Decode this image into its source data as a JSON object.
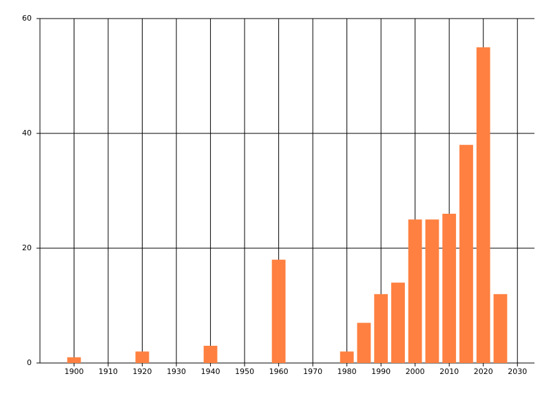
{
  "chart_data": {
    "type": "bar",
    "x": [
      1900,
      1920,
      1940,
      1960,
      1980,
      1985,
      1990,
      1995,
      2000,
      2005,
      2010,
      2015,
      2020,
      2025
    ],
    "values": [
      1,
      2,
      3,
      18,
      2,
      7,
      12,
      14,
      25,
      25,
      26,
      38,
      55,
      12
    ],
    "color": "#ff8040",
    "xlim": [
      1890,
      2035
    ],
    "xticks": [
      1900,
      1910,
      1920,
      1930,
      1940,
      1950,
      1960,
      1970,
      1980,
      1990,
      2000,
      2010,
      2020,
      2030
    ],
    "ylim": [
      0,
      60
    ],
    "yticks": [
      0,
      20,
      40,
      60
    ],
    "grid": true
  }
}
